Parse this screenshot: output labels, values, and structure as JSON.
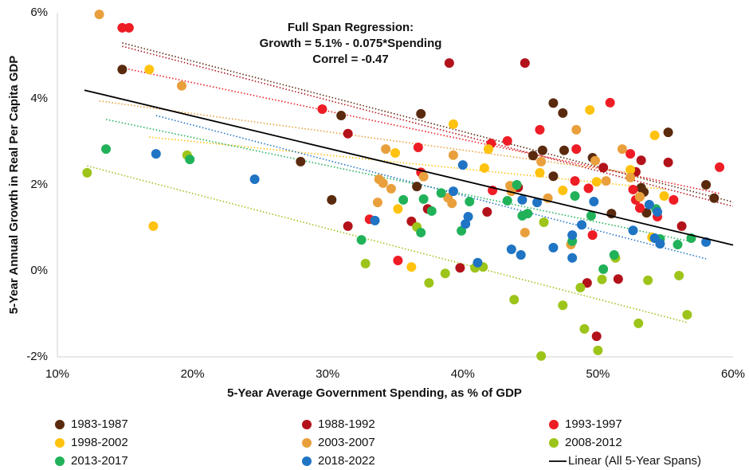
{
  "chart_data": {
    "type": "scatter",
    "annotations": [
      "Full Span Regression:",
      "Growth = 5.1% - 0.075*Spending",
      "Correl = -0.47"
    ],
    "xlabel": "5-Year Average Government Spending, as % of GDP",
    "ylabel": "5-Year Annual Growth in Real Per Capita GDP",
    "xlim": [
      10,
      60
    ],
    "ylim": [
      -2,
      6
    ],
    "xticks": [
      {
        "value": 10,
        "label": "10%"
      },
      {
        "value": 20,
        "label": "20%"
      },
      {
        "value": 30,
        "label": "30%"
      },
      {
        "value": 40,
        "label": "40%"
      },
      {
        "value": 50,
        "label": "50%"
      },
      {
        "value": 60,
        "label": "60%"
      }
    ],
    "yticks": [
      {
        "value": -2,
        "label": "-2%"
      },
      {
        "value": 0,
        "label": "0%"
      },
      {
        "value": 2,
        "label": "2%"
      },
      {
        "value": 4,
        "label": "4%"
      },
      {
        "value": 6,
        "label": "6%"
      }
    ],
    "grid": false,
    "legend": "bottom",
    "series": [
      {
        "name": "1983-1987",
        "color": "#5a2a0e",
        "style": "points",
        "x": [
          14.8,
          28.0,
          30.3,
          31.0,
          36.6,
          36.9,
          45.2,
          45.9,
          46.7,
          46.7,
          47.4,
          47.5,
          49.6,
          51.0,
          53.2,
          53.4,
          53.6,
          55.2,
          58.0,
          58.6
        ],
        "values": [
          4.68,
          2.54,
          1.65,
          3.61,
          1.96,
          3.65,
          2.68,
          2.8,
          3.9,
          2.2,
          3.67,
          2.8,
          2.63,
          1.33,
          1.93,
          1.83,
          1.35,
          3.22,
          2.0,
          1.69
        ],
        "trend_x": [
          14.8,
          60
        ],
        "trend_y": [
          5.3,
          1.6
        ]
      },
      {
        "name": "1988-1992",
        "color": "#b3121b",
        "style": "points",
        "x": [
          31.5,
          31.5,
          36.2,
          37.4,
          39.0,
          39.8,
          41.8,
          44.6,
          44.1,
          49.2,
          49.9,
          51.5,
          52.8,
          53.2,
          55.2,
          56.2,
          50.4
        ],
        "values": [
          3.19,
          1.04,
          1.15,
          1.44,
          4.83,
          0.07,
          1.37,
          4.83,
          1.94,
          -0.28,
          -1.52,
          -0.19,
          2.3,
          2.57,
          2.52,
          1.04,
          2.4
        ],
        "trend_x": [
          14.8,
          60
        ],
        "trend_y": [
          5.22,
          1.5
        ]
      },
      {
        "name": "1993-1997",
        "color": "#ee1c25",
        "style": "points",
        "x": [
          14.8,
          15.3,
          29.6,
          33.1,
          36.7,
          36.9,
          35.2,
          42.1,
          42.2,
          43.3,
          45.7,
          48.4,
          48.3,
          49.3,
          49.6,
          50.9,
          52.4,
          52.6,
          52.8,
          53.1,
          54.4,
          55.6,
          59.0
        ],
        "values": [
          5.65,
          5.65,
          3.76,
          1.2,
          2.87,
          2.29,
          0.24,
          2.96,
          1.87,
          3.02,
          3.28,
          2.83,
          2.09,
          1.92,
          0.83,
          3.91,
          2.72,
          1.89,
          1.65,
          1.46,
          1.26,
          1.65,
          2.41
        ],
        "trend_x": [
          14.8,
          59
        ],
        "trend_y": [
          4.72,
          1.8
        ]
      },
      {
        "name": "1998-2002",
        "color": "#ffc20e",
        "style": "points",
        "x": [
          16.8,
          17.1,
          35.0,
          35.2,
          36.2,
          39.3,
          41.6,
          41.9,
          45.7,
          47.4,
          49.4,
          49.9,
          52.4,
          53.1,
          54.2,
          54.9,
          54.0
        ],
        "values": [
          4.68,
          1.04,
          2.74,
          1.44,
          0.09,
          3.41,
          2.39,
          2.83,
          2.28,
          1.87,
          3.74,
          2.07,
          2.35,
          1.72,
          3.15,
          1.74,
          0.78
        ],
        "trend_x": [
          16.8,
          54.9
        ],
        "trend_y": [
          3.11,
          1.9
        ]
      },
      {
        "name": "2003-2007",
        "color": "#e9a03c",
        "style": "points",
        "x": [
          13.1,
          19.2,
          33.8,
          34.1,
          34.3,
          34.7,
          33.7,
          37.1,
          38.9,
          39.2,
          39.3,
          43.5,
          43.6,
          44.6,
          45.8,
          46.3,
          48.0,
          48.4,
          49.8,
          50.6,
          51.8,
          53.1,
          52.4
        ],
        "values": [
          5.96,
          4.3,
          2.13,
          2.04,
          2.83,
          1.91,
          1.59,
          2.19,
          1.7,
          1.57,
          2.69,
          1.98,
          1.85,
          0.89,
          2.54,
          1.69,
          0.61,
          3.28,
          2.56,
          2.09,
          2.83,
          1.72,
          2.17
        ],
        "trend_x": [
          13.1,
          53.1
        ],
        "trend_y": [
          3.95,
          2.25
        ]
      },
      {
        "name": "2008-2012",
        "color": "#9dc41a",
        "style": "points",
        "x": [
          12.2,
          19.6,
          32.8,
          36.6,
          37.5,
          38.7,
          40.9,
          41.5,
          43.8,
          46.0,
          45.8,
          47.4,
          48.7,
          49.0,
          50.0,
          50.3,
          51.3,
          53.0,
          53.7,
          56.0,
          56.6
        ],
        "values": [
          2.28,
          2.69,
          0.17,
          1.02,
          -0.28,
          -0.06,
          0.07,
          0.09,
          -0.67,
          1.13,
          -1.98,
          -0.8,
          -0.39,
          -1.35,
          -1.85,
          -0.2,
          0.3,
          -1.22,
          -0.22,
          -0.11,
          -1.02
        ],
        "trend_x": [
          12.2,
          56.6
        ],
        "trend_y": [
          2.44,
          -1.2
        ]
      },
      {
        "name": "2013-2017",
        "color": "#21b259",
        "style": "points",
        "x": [
          13.6,
          19.8,
          32.5,
          35.6,
          36.9,
          37.1,
          37.7,
          38.4,
          39.9,
          40.5,
          43.3,
          44.0,
          44.4,
          44.8,
          48.1,
          48.3,
          49.5,
          50.4,
          51.2,
          54.3,
          54.6,
          55.9,
          56.9
        ],
        "values": [
          2.83,
          2.59,
          0.72,
          1.65,
          0.89,
          1.67,
          1.39,
          1.81,
          0.93,
          1.61,
          1.63,
          2.0,
          1.28,
          1.33,
          0.69,
          1.74,
          1.28,
          0.04,
          0.37,
          1.44,
          0.74,
          0.61,
          0.76
        ],
        "trend_x": [
          13.6,
          56.9
        ],
        "trend_y": [
          3.52,
          0.68
        ]
      },
      {
        "name": "2018-2022",
        "color": "#1f74c4",
        "style": "points",
        "x": [
          17.3,
          24.6,
          33.5,
          39.3,
          40.0,
          40.2,
          40.4,
          41.1,
          43.6,
          44.3,
          44.4,
          45.5,
          46.7,
          48.1,
          48.1,
          48.8,
          49.7,
          52.6,
          53.8,
          54.4,
          54.2,
          54.6,
          58.0
        ],
        "values": [
          2.72,
          2.13,
          1.17,
          1.85,
          2.46,
          1.09,
          1.26,
          0.19,
          0.5,
          0.37,
          1.65,
          1.59,
          0.54,
          0.83,
          0.3,
          1.07,
          1.61,
          0.94,
          1.54,
          1.37,
          0.76,
          0.63,
          0.67
        ],
        "trend_x": [
          17.3,
          58.0
        ],
        "trend_y": [
          3.61,
          0.28
        ]
      },
      {
        "name": "Linear (All 5-Year Spans)",
        "color": "#000000",
        "style": "line",
        "x": [
          12,
          60
        ],
        "values": [
          4.2,
          0.6
        ]
      }
    ]
  }
}
